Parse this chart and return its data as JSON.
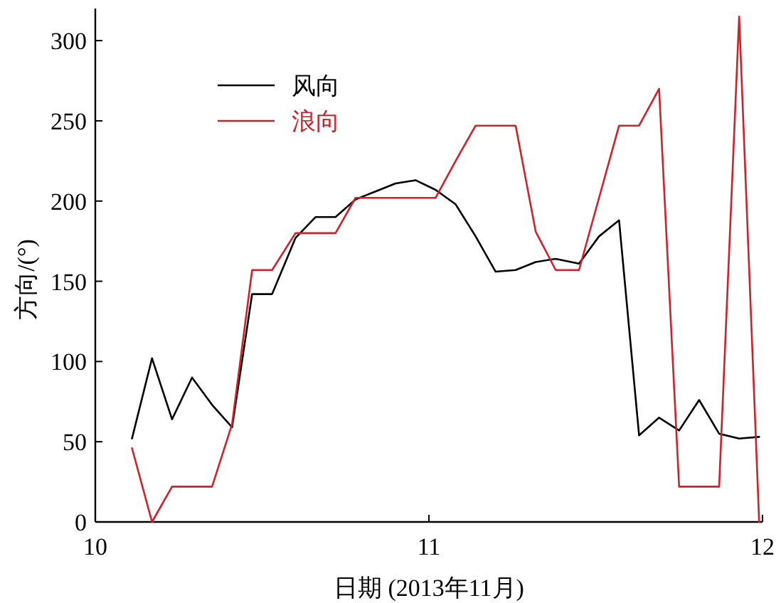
{
  "chart_data": {
    "type": "line",
    "xlabel": "日期 (2013年11月)",
    "ylabel": "方向/(°)",
    "x": [
      10.11,
      10.17,
      10.23,
      10.29,
      10.35,
      10.41,
      10.47,
      10.53,
      10.6,
      10.66,
      10.72,
      10.78,
      10.84,
      10.9,
      10.96,
      11.02,
      11.08,
      11.14,
      11.2,
      11.26,
      11.32,
      11.38,
      11.45,
      11.51,
      11.57,
      11.63,
      11.69,
      11.75,
      11.81,
      11.87,
      11.93,
      11.99
    ],
    "series": [
      {
        "name": "风向",
        "color": "#000000",
        "values": [
          52,
          102,
          64,
          90,
          73,
          59,
          142,
          142,
          177,
          190,
          190,
          201,
          206,
          211,
          213,
          207,
          198,
          178,
          156,
          157,
          162,
          164,
          161,
          178,
          188,
          54,
          65,
          57,
          76,
          55,
          52,
          53
        ]
      },
      {
        "name": "浪向",
        "color": "#d0202a",
        "values": [
          46,
          0,
          22,
          22,
          22,
          61,
          157,
          157,
          180,
          180,
          180,
          202,
          202,
          202,
          202,
          202,
          225,
          247,
          247,
          247,
          181,
          157,
          157,
          202,
          247,
          247,
          270,
          22,
          22,
          22,
          315,
          0
        ]
      }
    ],
    "xlim": [
      10,
      12
    ],
    "xticks": [
      10,
      11,
      12
    ],
    "ylim": [
      0,
      320
    ],
    "yticks": [
      0,
      50,
      100,
      150,
      200,
      250,
      300
    ],
    "grid": false,
    "legend": "top left",
    "marker": "none",
    "line_style": "solid"
  }
}
